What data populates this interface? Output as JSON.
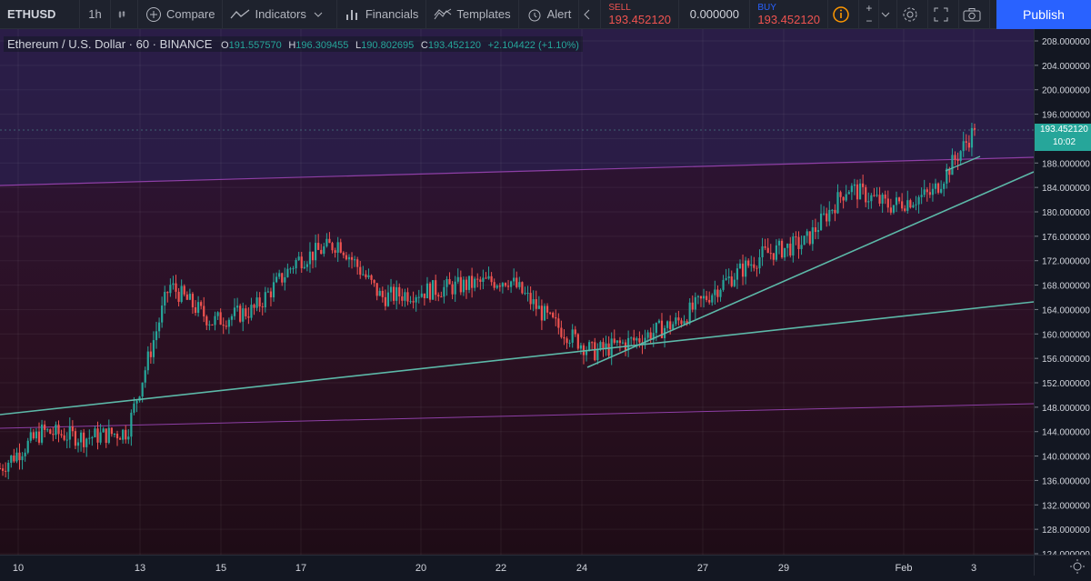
{
  "toolbar": {
    "symbol": "ETHUSD",
    "interval": "1h",
    "compare": "Compare",
    "indicators": "Indicators",
    "financials": "Financials",
    "templates": "Templates",
    "alert": "Alert",
    "sell_label": "SELL",
    "sell_price": "193.452120",
    "spread": "0.000000",
    "buy_label": "BUY",
    "buy_price": "193.452120",
    "publish": "Publish"
  },
  "legend": {
    "title": "Ethereum / U.S. Dollar · 60 · BINANCE",
    "open_label": "O",
    "open": "191.557570",
    "high_label": "H",
    "high": "196.309455",
    "low_label": "L",
    "low": "190.802695",
    "close_label": "C",
    "close": "193.452120",
    "change": "+2.104422 (+1.10%)"
  },
  "price_tag": {
    "price": "193.452120",
    "countdown": "10:02"
  },
  "colors": {
    "up": "#26a69a",
    "down": "#ef5350",
    "trendline": "#5cb8a8",
    "channel": "#8e3fa6",
    "accent": "#2962ff"
  },
  "chart_data": {
    "type": "candlestick",
    "symbol": "Ethereum / U.S. Dollar",
    "interval": "60",
    "exchange": "BINANCE",
    "y_ticks": [
      124,
      128,
      132,
      136,
      140,
      144,
      148,
      152,
      156,
      160,
      164,
      168,
      172,
      176,
      180,
      184,
      188,
      192,
      196,
      200,
      204,
      208
    ],
    "x_ticks": [
      "10",
      "13",
      "15",
      "17",
      "20",
      "22",
      "24",
      "27",
      "29",
      "Feb",
      "3"
    ],
    "approx_close_path": [
      {
        "x": "10",
        "close": 138
      },
      {
        "x": "11",
        "close": 144
      },
      {
        "x": "12",
        "close": 143
      },
      {
        "x": "13",
        "close": 144
      },
      {
        "x": "14",
        "close": 168
      },
      {
        "x": "15",
        "close": 162
      },
      {
        "x": "16",
        "close": 164
      },
      {
        "x": "17",
        "close": 172
      },
      {
        "x": "18",
        "close": 175
      },
      {
        "x": "19",
        "close": 166
      },
      {
        "x": "20",
        "close": 167
      },
      {
        "x": "21",
        "close": 168
      },
      {
        "x": "22",
        "close": 169
      },
      {
        "x": "23",
        "close": 162
      },
      {
        "x": "24",
        "close": 157
      },
      {
        "x": "25",
        "close": 159
      },
      {
        "x": "26",
        "close": 162
      },
      {
        "x": "27",
        "close": 168
      },
      {
        "x": "28",
        "close": 173
      },
      {
        "x": "29",
        "close": 175
      },
      {
        "x": "30",
        "close": 184
      },
      {
        "x": "31",
        "close": 181
      },
      {
        "x": "Feb",
        "close": 183
      },
      {
        "x": "2",
        "close": 193.45
      }
    ],
    "last": 193.45212
  }
}
